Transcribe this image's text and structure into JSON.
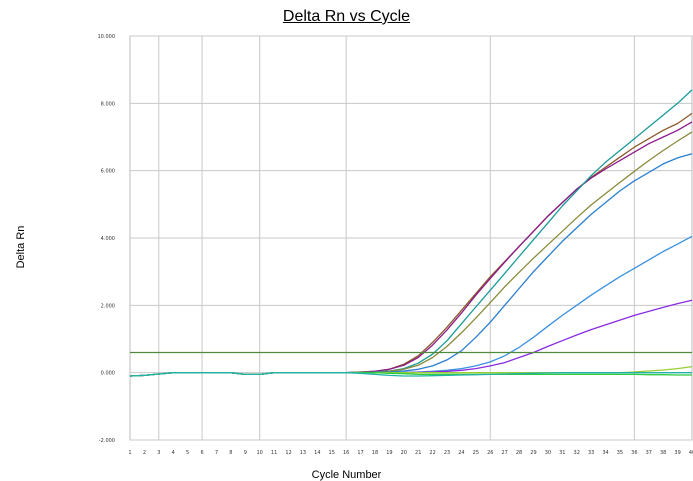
{
  "chart_data": {
    "type": "line",
    "title": "Delta Rn vs Cycle",
    "xlabel": "Cycle Number",
    "ylabel": "Delta Rn",
    "xlim": [
      1,
      40
    ],
    "ylim": [
      -2.0,
      10.0
    ],
    "y_ticks": [
      "10.000",
      "8.000",
      "6.000",
      "4.000",
      "2.000",
      "0.000",
      "-2.000"
    ],
    "y_tick_values": [
      10,
      8,
      6,
      4,
      2,
      0,
      -2
    ],
    "x_ticks": [
      "1",
      "2",
      "3",
      "4",
      "5",
      "6",
      "7",
      "8",
      "9",
      "10",
      "11",
      "12",
      "13",
      "14",
      "15",
      "16",
      "17",
      "18",
      "19",
      "20",
      "21",
      "22",
      "23",
      "24",
      "25",
      "26",
      "27",
      "28",
      "29",
      "30",
      "31",
      "32",
      "33",
      "34",
      "35",
      "36",
      "37",
      "38",
      "39",
      "40"
    ],
    "vgrid_cycles": [
      3,
      6,
      10,
      16,
      26,
      36
    ],
    "grid": true,
    "threshold": 0.6,
    "threshold_color": "#4f8a3c",
    "series": [
      {
        "color": "#8b5a2b",
        "values": [
          -0.1,
          -0.08,
          -0.04,
          0,
          0,
          0,
          0,
          0,
          -0.05,
          -0.05,
          0,
          0,
          0,
          0,
          0,
          0,
          0.02,
          0.04,
          0.1,
          0.25,
          0.5,
          0.9,
          1.35,
          1.85,
          2.35,
          2.85,
          3.3,
          3.75,
          4.2,
          4.65,
          5.05,
          5.45,
          5.8,
          6.1,
          6.4,
          6.7,
          6.95,
          7.2,
          7.4,
          7.7
        ]
      },
      {
        "color": "#8b1a8b",
        "values": [
          -0.1,
          -0.08,
          -0.04,
          0,
          0,
          0,
          0,
          0,
          -0.05,
          -0.05,
          0,
          0,
          0,
          0,
          0,
          0,
          0.02,
          0.04,
          0.1,
          0.22,
          0.45,
          0.82,
          1.27,
          1.77,
          2.3,
          2.8,
          3.28,
          3.75,
          4.2,
          4.65,
          5.05,
          5.45,
          5.78,
          6.05,
          6.3,
          6.55,
          6.8,
          7.0,
          7.2,
          7.45
        ]
      },
      {
        "color": "#1a9a9a",
        "values": [
          -0.1,
          -0.08,
          -0.04,
          0,
          0,
          0,
          0,
          0,
          -0.05,
          -0.05,
          0,
          0,
          0,
          0,
          0,
          0,
          0.01,
          0.02,
          0.05,
          0.12,
          0.28,
          0.55,
          0.95,
          1.45,
          1.95,
          2.45,
          2.95,
          3.45,
          3.95,
          4.45,
          4.95,
          5.4,
          5.85,
          6.25,
          6.6,
          6.95,
          7.3,
          7.65,
          8.0,
          8.4
        ]
      },
      {
        "color": "#8a8a3a",
        "values": [
          -0.1,
          -0.08,
          -0.04,
          0,
          0,
          0,
          0,
          0,
          -0.05,
          -0.05,
          0,
          0,
          0,
          0,
          0,
          0,
          0.01,
          0.02,
          0.04,
          0.1,
          0.22,
          0.45,
          0.78,
          1.18,
          1.62,
          2.08,
          2.55,
          2.98,
          3.4,
          3.8,
          4.2,
          4.6,
          4.98,
          5.32,
          5.65,
          5.98,
          6.3,
          6.6,
          6.88,
          7.15
        ]
      },
      {
        "color": "#2b7fd0",
        "values": [
          -0.1,
          -0.08,
          -0.04,
          0,
          0,
          0,
          0,
          0,
          -0.05,
          -0.05,
          0,
          0,
          0,
          0,
          0,
          0,
          0,
          0.01,
          0.02,
          0.05,
          0.1,
          0.2,
          0.38,
          0.65,
          1.05,
          1.5,
          2.0,
          2.5,
          3.0,
          3.45,
          3.9,
          4.3,
          4.7,
          5.05,
          5.4,
          5.7,
          5.95,
          6.2,
          6.38,
          6.5
        ]
      },
      {
        "color": "#3a90e0",
        "values": [
          -0.1,
          -0.08,
          -0.04,
          0,
          0,
          0,
          0,
          0,
          -0.05,
          -0.05,
          0,
          0,
          0,
          0,
          0,
          0,
          0,
          0,
          0,
          0.01,
          0.02,
          0.04,
          0.07,
          0.12,
          0.2,
          0.32,
          0.5,
          0.75,
          1.05,
          1.38,
          1.7,
          2.0,
          2.3,
          2.58,
          2.85,
          3.1,
          3.35,
          3.6,
          3.82,
          4.05
        ]
      },
      {
        "color": "#8a2be2",
        "values": [
          -0.1,
          -0.08,
          -0.04,
          0,
          0,
          0,
          0,
          0,
          -0.05,
          -0.05,
          0,
          0,
          0,
          0,
          0,
          0,
          0,
          0,
          0,
          0,
          0.01,
          0.02,
          0.04,
          0.07,
          0.12,
          0.2,
          0.3,
          0.45,
          0.6,
          0.78,
          0.95,
          1.12,
          1.28,
          1.42,
          1.56,
          1.7,
          1.82,
          1.94,
          2.05,
          2.15
        ]
      },
      {
        "color": "#9acd32",
        "values": [
          -0.1,
          -0.08,
          -0.04,
          0,
          0,
          0,
          0,
          0,
          -0.05,
          -0.05,
          0,
          0,
          0,
          0,
          0,
          0,
          0,
          0,
          0,
          0,
          0,
          0,
          0,
          0,
          0,
          0,
          0,
          0,
          0,
          0,
          0,
          0,
          0,
          0,
          0,
          0.02,
          0.05,
          0.08,
          0.12,
          0.18
        ]
      },
      {
        "color": "#2ecc40",
        "values": [
          -0.1,
          -0.08,
          -0.04,
          0,
          0,
          0,
          0,
          0,
          -0.05,
          -0.05,
          0,
          0,
          0,
          0,
          0,
          0,
          0,
          0,
          -0.02,
          -0.03,
          -0.05,
          -0.05,
          -0.05,
          -0.05,
          -0.05,
          -0.05,
          -0.05,
          -0.05,
          -0.05,
          -0.05,
          -0.05,
          -0.05,
          -0.05,
          -0.05,
          -0.05,
          -0.05,
          -0.06,
          -0.06,
          -0.07,
          -0.07
        ]
      },
      {
        "color": "#20b2aa",
        "values": [
          -0.1,
          -0.08,
          -0.04,
          0,
          0,
          0,
          0,
          0,
          -0.05,
          -0.05,
          0,
          0,
          0,
          0,
          0,
          0,
          -0.02,
          -0.05,
          -0.08,
          -0.1,
          -0.1,
          -0.09,
          -0.08,
          -0.07,
          -0.06,
          -0.05,
          -0.04,
          -0.03,
          -0.02,
          -0.01,
          0,
          0,
          0,
          0,
          0,
          0,
          0,
          0,
          0,
          0
        ]
      }
    ]
  }
}
